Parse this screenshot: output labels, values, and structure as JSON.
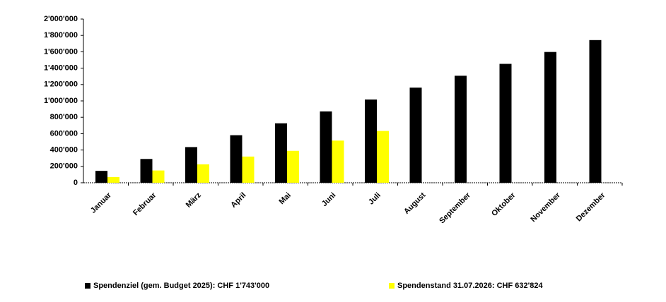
{
  "chart_data": {
    "type": "bar",
    "categories": [
      "Januar",
      "Februar",
      "März",
      "April",
      "Mai",
      "Juni",
      "Juli",
      "August",
      "September",
      "Oktober",
      "November",
      "Dezember"
    ],
    "series": [
      {
        "name": "Spendenziel (gem. Budget 2025): CHF 1'743'000",
        "color": "#000000",
        "values": [
          145250,
          290500,
          435750,
          581000,
          726250,
          871500,
          1016750,
          1162000,
          1307250,
          1452500,
          1597750,
          1743000
        ]
      },
      {
        "name": "Spendenstand 31.07.2026: CHF 632'824",
        "color": "#ffff00",
        "values": [
          70000,
          150000,
          225000,
          320000,
          390000,
          515000,
          632824,
          null,
          null,
          null,
          null,
          null
        ]
      }
    ],
    "ylim": [
      0,
      2000000
    ],
    "yticks": [
      0,
      {
        "value": 200000,
        "label": "200'000"
      },
      {
        "value": 400000,
        "label": "400'000"
      },
      {
        "value": 600000,
        "label": "600'000"
      },
      {
        "value": 800000,
        "label": "800'000"
      },
      {
        "value": 1000000,
        "label": "1'000'000"
      },
      {
        "value": 1200000,
        "label": "1'200'000"
      },
      {
        "value": 1400000,
        "label": "1'400'000"
      },
      {
        "value": 1600000,
        "label": "1'600'000"
      },
      {
        "value": 1800000,
        "label": "1'800'000"
      },
      {
        "value": 2000000,
        "label": "2'000'000"
      }
    ],
    "grid": false,
    "legend": "bottom"
  }
}
